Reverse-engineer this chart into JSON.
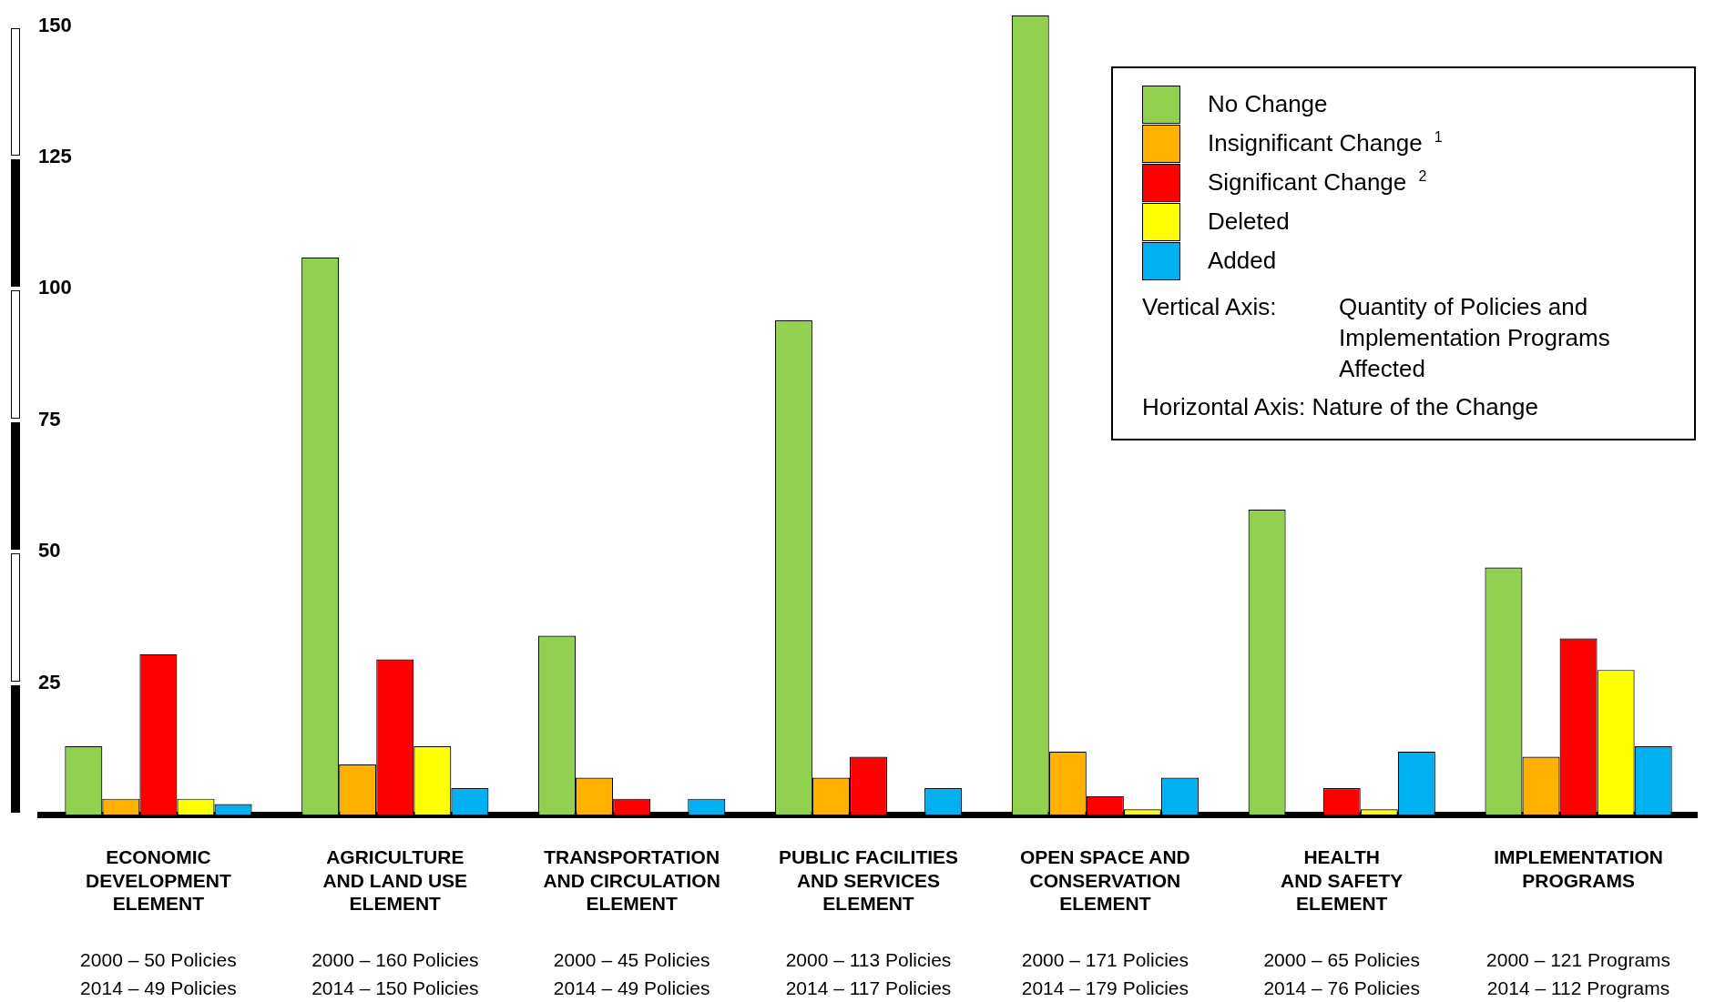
{
  "chart_data": {
    "type": "bar",
    "categories": [
      "ECONOMIC\nDEVELOPMENT\nELEMENT",
      "AGRICULTURE\nAND LAND USE\nELEMENT",
      "TRANSPORTATION\nAND CIRCULATION\nELEMENT",
      "PUBLIC FACILITIES\nAND SERVICES\nELEMENT",
      "OPEN SPACE AND\nCONSERVATION\nELEMENT",
      "HEALTH\nAND SAFETY\nELEMENT",
      "IMPLEMENTATION\nPROGRAMS"
    ],
    "series": [
      {
        "name": "No Change",
        "color": "#92d050",
        "values": [
          13,
          106,
          34,
          94,
          152,
          58,
          47
        ]
      },
      {
        "name": "Insignificant Change $^{1}$",
        "color": "#ffb000",
        "values": [
          3,
          9.5,
          7,
          7,
          12,
          null,
          11
        ]
      },
      {
        "name": "Significant Change $^{2}$",
        "color": "#ff0000",
        "values": [
          30.5,
          29.5,
          3,
          11,
          3.5,
          5,
          33.5
        ]
      },
      {
        "name": "Deleted",
        "color": "#ffff00",
        "values": [
          3,
          13,
          null,
          null,
          1,
          1,
          27.5
        ]
      },
      {
        "name": "Added",
        "color": "#00b0f0",
        "values": [
          2,
          5,
          3,
          5,
          7,
          12,
          13
        ]
      }
    ],
    "ylim": [
      0,
      153
    ],
    "yticks": [
      25,
      50,
      75,
      100,
      125,
      150
    ],
    "grid": false,
    "legend": "top right",
    "annotations": [
      "2000 – 50 Policies",
      "2014 – 49 Policies",
      "2000 – 160 Policies",
      "2014 – 150 Policies",
      "2000 – 45 Policies",
      "2014 – 49 Policies",
      "2000 – 113 Policies",
      "2014 – 117 Policies",
      "2000 – 171 Policies",
      "2014 – 179 Policies",
      "2000 – 65 Policies",
      "2014 – 76 Policies",
      "2000 – 121 Programs",
      "2014 – 112 Programs",
      "Vertical Axis:",
      "Quantity of Policies and Implementation Programs Affected",
      "Horizontal Axis: Nature of the Change"
    ]
  }
}
